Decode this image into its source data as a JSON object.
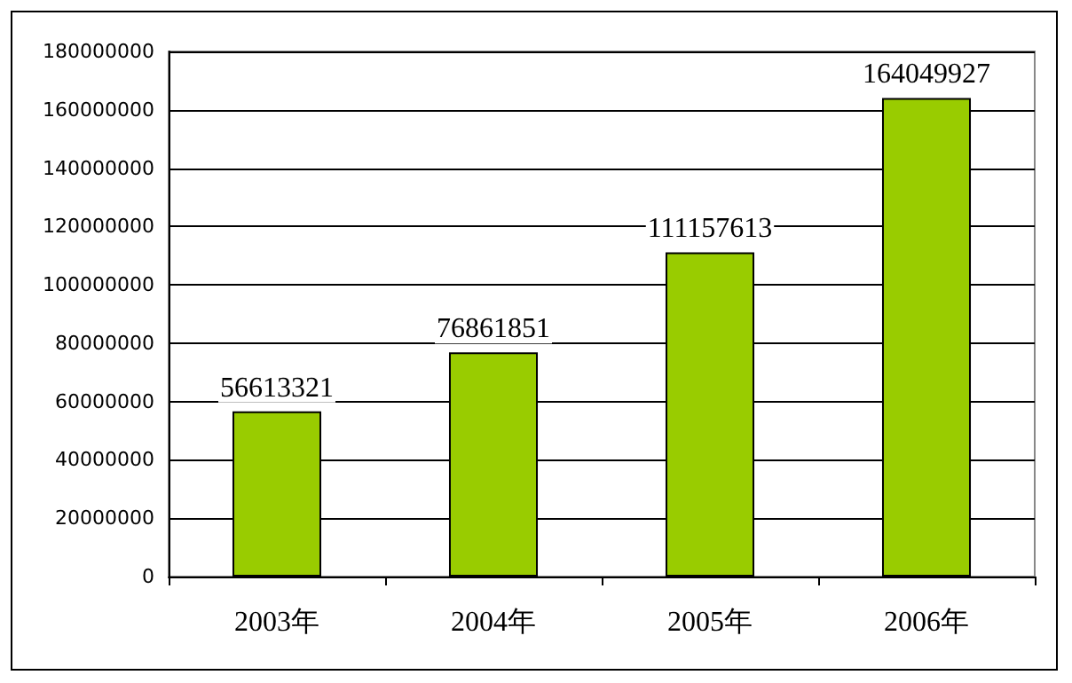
{
  "chart_data": {
    "type": "bar",
    "categories": [
      "2003年",
      "2004年",
      "2005年",
      "2006年"
    ],
    "values": [
      56613321,
      76861851,
      111157613,
      164049927
    ],
    "color": "#99cc00",
    "ylim": [
      0,
      180000000
    ],
    "yticks": [
      0,
      20000000,
      40000000,
      60000000,
      80000000,
      100000000,
      120000000,
      140000000,
      160000000,
      180000000
    ],
    "grid": "y",
    "data_labels": true
  }
}
